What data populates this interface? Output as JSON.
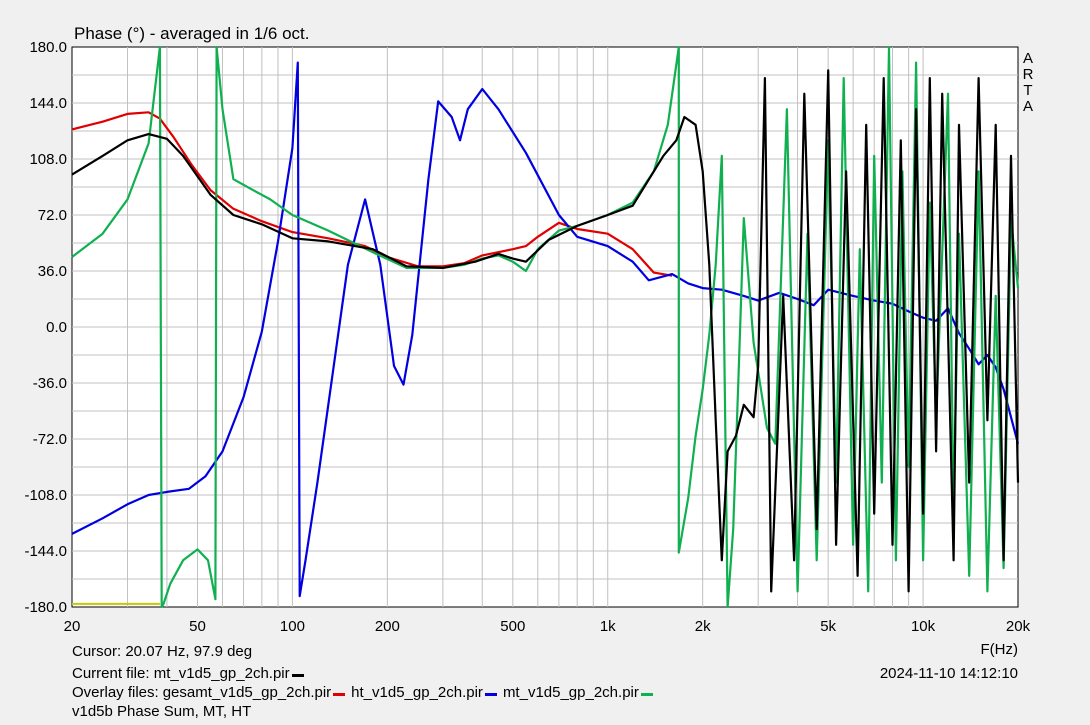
{
  "chart_data": {
    "type": "line",
    "title": "Phase (°) - averaged in 1/6 oct.",
    "xlabel": "F(Hz)",
    "x_scale": "log",
    "xlim": [
      20,
      20000
    ],
    "ylim": [
      -180,
      180
    ],
    "grid": true,
    "x_ticks": [
      {
        "v": 20,
        "label": "20"
      },
      {
        "v": 50,
        "label": "50"
      },
      {
        "v": 100,
        "label": "100"
      },
      {
        "v": 200,
        "label": "200"
      },
      {
        "v": 500,
        "label": "500"
      },
      {
        "v": 1000,
        "label": "1k"
      },
      {
        "v": 2000,
        "label": "2k"
      },
      {
        "v": 5000,
        "label": "5k"
      },
      {
        "v": 10000,
        "label": "10k"
      },
      {
        "v": 20000,
        "label": "20k"
      }
    ],
    "y_ticks": [
      {
        "v": 180,
        "label": "180.0"
      },
      {
        "v": 144,
        "label": "144.0"
      },
      {
        "v": 108,
        "label": "108.0"
      },
      {
        "v": 72,
        "label": "72.0"
      },
      {
        "v": 36,
        "label": "36.0"
      },
      {
        "v": 0,
        "label": "0.0"
      },
      {
        "v": -36,
        "label": "-36.0"
      },
      {
        "v": -72,
        "label": "-72.0"
      },
      {
        "v": -108,
        "label": "-108.0"
      },
      {
        "v": -144,
        "label": "-144.0"
      },
      {
        "v": -180,
        "label": "-180.0"
      }
    ],
    "brand": [
      "A",
      "R",
      "T",
      "A"
    ],
    "series": [
      {
        "name": "gesamt_v1d5_gp_2ch.pir",
        "color": "#e00000",
        "points": [
          [
            20,
            127
          ],
          [
            25,
            132
          ],
          [
            30,
            137
          ],
          [
            35,
            138
          ],
          [
            38,
            134
          ],
          [
            42,
            122
          ],
          [
            48,
            104
          ],
          [
            55,
            88
          ],
          [
            65,
            76
          ],
          [
            80,
            68
          ],
          [
            100,
            61
          ],
          [
            130,
            57
          ],
          [
            170,
            52
          ],
          [
            200,
            45
          ],
          [
            250,
            39
          ],
          [
            300,
            39
          ],
          [
            350,
            41
          ],
          [
            400,
            46
          ],
          [
            500,
            50
          ],
          [
            550,
            52
          ],
          [
            600,
            58
          ],
          [
            700,
            67
          ],
          [
            800,
            63
          ],
          [
            1000,
            60
          ],
          [
            1200,
            50
          ],
          [
            1400,
            35
          ],
          [
            1600,
            33
          ]
        ]
      },
      {
        "name": "ht_v1d5_gp_2ch.pir",
        "color": "#0000e0",
        "points": [
          [
            20,
            -133
          ],
          [
            25,
            -123
          ],
          [
            30,
            -114
          ],
          [
            35,
            -108
          ],
          [
            40,
            -106
          ],
          [
            47,
            -104
          ],
          [
            53,
            -96
          ],
          [
            60,
            -80
          ],
          [
            70,
            -45
          ],
          [
            80,
            -3
          ],
          [
            90,
            55
          ],
          [
            100,
            115
          ],
          [
            104,
            170
          ],
          [
            105.5,
            -173
          ],
          [
            110,
            -150
          ],
          [
            120,
            -100
          ],
          [
            130,
            -50
          ],
          [
            150,
            40
          ],
          [
            170,
            82
          ],
          [
            190,
            40
          ],
          [
            210,
            -25
          ],
          [
            225,
            -37
          ],
          [
            240,
            -5
          ],
          [
            270,
            95
          ],
          [
            290,
            145
          ],
          [
            320,
            135
          ],
          [
            340,
            120
          ],
          [
            360,
            140
          ],
          [
            400,
            153
          ],
          [
            450,
            140
          ],
          [
            550,
            112
          ],
          [
            700,
            72
          ],
          [
            800,
            58
          ],
          [
            1000,
            52
          ],
          [
            1200,
            42
          ],
          [
            1350,
            30
          ],
          [
            1600,
            34
          ],
          [
            1800,
            28
          ],
          [
            2000,
            25
          ],
          [
            2300,
            24
          ],
          [
            2700,
            20
          ],
          [
            3000,
            17
          ],
          [
            3500,
            22
          ],
          [
            4000,
            18
          ],
          [
            4500,
            14
          ],
          [
            5000,
            24
          ],
          [
            6000,
            20
          ],
          [
            7000,
            17
          ],
          [
            8000,
            15
          ],
          [
            9000,
            10
          ],
          [
            10000,
            6
          ],
          [
            11000,
            4
          ],
          [
            12000,
            12
          ],
          [
            13000,
            -4
          ],
          [
            14000,
            -14
          ],
          [
            15000,
            -24
          ],
          [
            16000,
            -18
          ],
          [
            17000,
            -26
          ],
          [
            18000,
            -40
          ],
          [
            19000,
            -58
          ],
          [
            20000,
            -75
          ]
        ]
      },
      {
        "name": "mt_v1d5_gp_2ch.pir",
        "color": "#10b050",
        "points": [
          [
            20,
            45
          ],
          [
            25,
            60
          ],
          [
            30,
            82
          ],
          [
            35,
            118
          ],
          [
            38,
            180
          ],
          [
            38.5,
            -180
          ],
          [
            39,
            -178
          ],
          [
            41,
            -165
          ],
          [
            45,
            -150
          ],
          [
            50,
            -143
          ],
          [
            54,
            -150
          ],
          [
            57,
            -175
          ],
          [
            57.5,
            180
          ],
          [
            60,
            140
          ],
          [
            65,
            95
          ],
          [
            75,
            88
          ],
          [
            85,
            82
          ],
          [
            100,
            72
          ],
          [
            130,
            62
          ],
          [
            180,
            48
          ],
          [
            230,
            38
          ],
          [
            300,
            38
          ],
          [
            350,
            40
          ],
          [
            400,
            44
          ],
          [
            450,
            46
          ],
          [
            500,
            42
          ],
          [
            550,
            36
          ],
          [
            600,
            50
          ],
          [
            700,
            62
          ],
          [
            800,
            65
          ],
          [
            1000,
            72
          ],
          [
            1200,
            80
          ],
          [
            1400,
            100
          ],
          [
            1550,
            130
          ],
          [
            1680,
            180
          ],
          [
            1680,
            -145
          ],
          [
            1800,
            -110
          ],
          [
            1900,
            -70
          ],
          [
            2000,
            -40
          ],
          [
            2100,
            -5
          ],
          [
            2200,
            40
          ],
          [
            2300,
            110
          ],
          [
            2400,
            -180
          ],
          [
            2500,
            -130
          ],
          [
            2600,
            -30
          ],
          [
            2700,
            70
          ],
          [
            2900,
            -10
          ],
          [
            3200,
            -65
          ],
          [
            3400,
            -75
          ],
          [
            3700,
            140
          ],
          [
            4000,
            -170
          ],
          [
            4300,
            60
          ],
          [
            4600,
            -150
          ],
          [
            5000,
            120
          ],
          [
            5300,
            -100
          ],
          [
            5600,
            160
          ],
          [
            6000,
            -140
          ],
          [
            6300,
            50
          ],
          [
            6700,
            -170
          ],
          [
            7000,
            110
          ],
          [
            7400,
            -100
          ],
          [
            7800,
            180
          ],
          [
            8200,
            -150
          ],
          [
            8600,
            100
          ],
          [
            9000,
            -90
          ],
          [
            9500,
            170
          ],
          [
            10000,
            -150
          ],
          [
            10500,
            80
          ],
          [
            11000,
            -60
          ],
          [
            12000,
            150
          ],
          [
            12500,
            -120
          ],
          [
            13000,
            60
          ],
          [
            14000,
            -160
          ],
          [
            15000,
            100
          ],
          [
            16000,
            -170
          ],
          [
            17000,
            20
          ],
          [
            18000,
            -155
          ],
          [
            19000,
            70
          ],
          [
            20000,
            25
          ]
        ]
      },
      {
        "name": "mt_v1d5_gp_2ch.pir",
        "color": "#000000",
        "points": [
          [
            20,
            98
          ],
          [
            25,
            110
          ],
          [
            30,
            120
          ],
          [
            35,
            124
          ],
          [
            40,
            121
          ],
          [
            45,
            110
          ],
          [
            55,
            85
          ],
          [
            65,
            72
          ],
          [
            80,
            66
          ],
          [
            100,
            57
          ],
          [
            130,
            55
          ],
          [
            180,
            50
          ],
          [
            230,
            39
          ],
          [
            300,
            38
          ],
          [
            380,
            42
          ],
          [
            450,
            47
          ],
          [
            500,
            44
          ],
          [
            550,
            42
          ],
          [
            650,
            56
          ],
          [
            800,
            65
          ],
          [
            1000,
            72
          ],
          [
            1200,
            78
          ],
          [
            1400,
            100
          ],
          [
            1500,
            110
          ],
          [
            1650,
            120
          ],
          [
            1750,
            135
          ],
          [
            1900,
            130
          ],
          [
            2000,
            100
          ],
          [
            2100,
            40
          ],
          [
            2200,
            -60
          ],
          [
            2300,
            -150
          ],
          [
            2400,
            -80
          ],
          [
            2550,
            -70
          ],
          [
            2700,
            -50
          ],
          [
            2900,
            -58
          ],
          [
            3000,
            -25
          ],
          [
            3150,
            160
          ],
          [
            3300,
            -170
          ],
          [
            3600,
            20
          ],
          [
            3900,
            -150
          ],
          [
            4200,
            150
          ],
          [
            4600,
            -130
          ],
          [
            5000,
            165
          ],
          [
            5300,
            -140
          ],
          [
            5700,
            100
          ],
          [
            6200,
            -160
          ],
          [
            6600,
            130
          ],
          [
            7000,
            -120
          ],
          [
            7500,
            160
          ],
          [
            8000,
            -140
          ],
          [
            8500,
            120
          ],
          [
            9000,
            -170
          ],
          [
            9500,
            140
          ],
          [
            10000,
            -120
          ],
          [
            10500,
            160
          ],
          [
            11000,
            -80
          ],
          [
            11500,
            150
          ],
          [
            12500,
            -150
          ],
          [
            13000,
            130
          ],
          [
            14000,
            -100
          ],
          [
            15000,
            160
          ],
          [
            16000,
            -60
          ],
          [
            17000,
            130
          ],
          [
            18000,
            -150
          ],
          [
            19000,
            110
          ],
          [
            20000,
            -100
          ]
        ]
      }
    ]
  },
  "ref_line": {
    "color": "#c8c800",
    "x_from": 20,
    "x_to": 38,
    "y": -178
  },
  "cursor_text": "Cursor: 20.07 Hz, 97.9 deg",
  "current_file": {
    "label": "Current file: mt_v1d5_gp_2ch.pir",
    "color": "#000000"
  },
  "timestamp": "2024-11-10  14:12:10",
  "overlay_label": "Overlay files:",
  "overlays": [
    {
      "name": "gesamt_v1d5_gp_2ch.pir",
      "color": "#e00000"
    },
    {
      "name": "ht_v1d5_gp_2ch.pir",
      "color": "#0000e0"
    },
    {
      "name": "mt_v1d5_gp_2ch.pir",
      "color": "#10b050"
    }
  ],
  "caption": "v1d5b Phase Sum, MT, HT"
}
